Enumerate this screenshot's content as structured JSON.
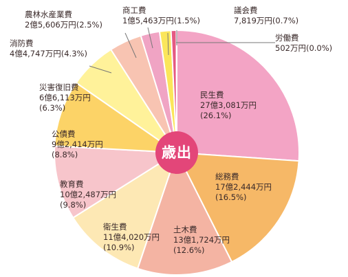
{
  "chart_data": {
    "type": "pie",
    "center_label": "歳出",
    "slices": [
      {
        "name": "民生費",
        "amount": "27億3,081万円",
        "percent_label": "(26.1%)",
        "value": 26.1,
        "color": "#f3a4c5"
      },
      {
        "name": "総務費",
        "amount": "17億2,444万円",
        "percent_label": "(16.5%)",
        "value": 16.5,
        "color": "#f6b867"
      },
      {
        "name": "土木費",
        "amount": "13億1,724万円",
        "percent_label": "(12.6%)",
        "value": 12.6,
        "color": "#f4b4a3"
      },
      {
        "name": "衛生費",
        "amount": "11億4,020万円",
        "percent_label": "(10.9%)",
        "value": 10.9,
        "color": "#fde8b4"
      },
      {
        "name": "教育費",
        "amount": "10億2,487万円",
        "percent_label": "(9.8%)",
        "value": 9.8,
        "color": "#f7c5cb"
      },
      {
        "name": "公債費",
        "amount": "9億2,414万円",
        "percent_label": "(8.8%)",
        "value": 8.8,
        "color": "#fcd367"
      },
      {
        "name": "災害復旧費",
        "amount": "6億6,113万円",
        "percent_label": "(6.3%)",
        "value": 6.3,
        "color": "#fff29a"
      },
      {
        "name": "消防費",
        "amount": "4億4,747万円",
        "percent_label": "(4.3%)",
        "value": 4.3,
        "color": "#f8c4b2"
      },
      {
        "name": "農林水産業費",
        "amount": "2億5,606万円",
        "percent_label": "(2.5%)",
        "value": 2.5,
        "color": "#f0a4c4"
      },
      {
        "name": "商工費",
        "amount": "1億5,463万円",
        "percent_label": "(1.5%)",
        "value": 1.5,
        "color": "#fbe65a"
      },
      {
        "name": "議会費",
        "amount": "7,819万円",
        "percent_label": "(0.7%)",
        "value": 0.7,
        "color": "#e55a82"
      },
      {
        "name": "労働費",
        "amount": "502万円",
        "percent_label": "(0.0%)",
        "value": 0.05,
        "color": "#f19a3e"
      }
    ]
  }
}
